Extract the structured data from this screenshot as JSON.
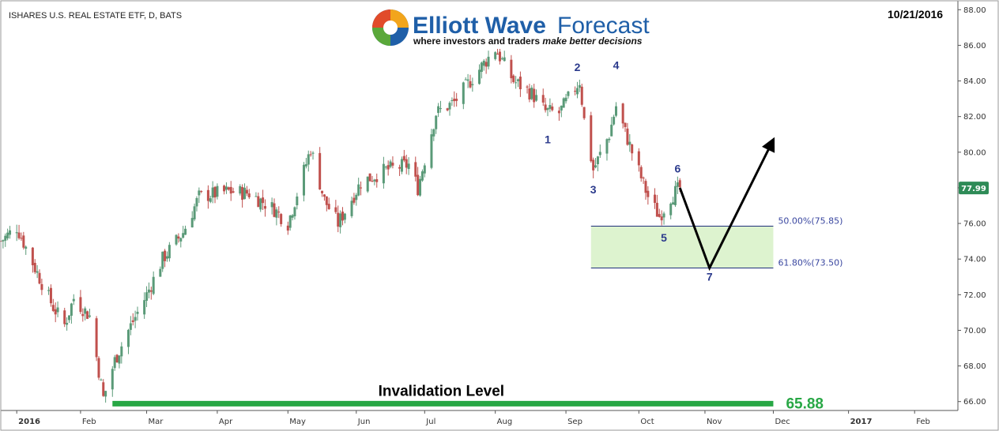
{
  "chart_title": "ISHARES U.S. REAL ESTATE ETF, D, BATS",
  "date_label": "10/21/2016",
  "logo": {
    "name_bold": "Elliott Wave",
    "name_regular": "Forecast",
    "tagline_regular": "where investors and traders ",
    "tagline_italic": "make better decisions"
  },
  "current_price": {
    "label": "77.99",
    "value": 77.99,
    "color": "#2e8b57"
  },
  "colors": {
    "up": "#5a9a78",
    "down": "#c0504d",
    "zone": "#ddf3cf",
    "fib_line": "#1f2f7a",
    "wave_label": "#2b3a8c",
    "invalidation": "#28a745"
  },
  "invalidation": {
    "label": "Invalidation Level",
    "value_label": "65.88",
    "value": 65.88,
    "from": "2016-02-15",
    "to": "2016-12-01"
  },
  "fib_zone": {
    "from": "2016-09-12",
    "to": "2016-12-01",
    "top": 75.85,
    "bottom": 73.5,
    "top_label": "50.00%(75.85)",
    "bottom_label": "61.80%(73.50)"
  },
  "projection": {
    "points": [
      {
        "date": "2016-10-21",
        "price": 78.0
      },
      {
        "date": "2016-11-03",
        "price": 73.5
      },
      {
        "date": "2016-12-01",
        "price": 80.7
      }
    ],
    "arrow": true
  },
  "chart_data": {
    "type": "candlestick",
    "title": "ISHARES U.S. REAL ESTATE ETF, D, BATS",
    "xlabel": "",
    "ylabel": "",
    "ylim": [
      65.5,
      88.5
    ],
    "xlim": [
      "2015-12-28",
      "2017-02-20"
    ],
    "y_ticks": [
      "66.00",
      "68.00",
      "70.00",
      "72.00",
      "74.00",
      "76.00",
      "78.00",
      "80.00",
      "82.00",
      "84.00",
      "86.00",
      "88.00"
    ],
    "x_ticks": [
      {
        "date": "2016-01-04",
        "label": "2016"
      },
      {
        "date": "2016-02-01",
        "label": "Feb"
      },
      {
        "date": "2016-03-01",
        "label": "Mar"
      },
      {
        "date": "2016-04-01",
        "label": "Apr"
      },
      {
        "date": "2016-05-02",
        "label": "May"
      },
      {
        "date": "2016-06-01",
        "label": "Jun"
      },
      {
        "date": "2016-07-01",
        "label": "Jul"
      },
      {
        "date": "2016-08-01",
        "label": "Aug"
      },
      {
        "date": "2016-09-01",
        "label": "Sep"
      },
      {
        "date": "2016-10-03",
        "label": "Oct"
      },
      {
        "date": "2016-11-01",
        "label": "Nov"
      },
      {
        "date": "2016-12-01",
        "label": "Dec"
      },
      {
        "date": "2017-01-03",
        "label": "2017"
      },
      {
        "date": "2017-02-01",
        "label": "Feb"
      }
    ],
    "close_path": [
      {
        "date": "2015-12-28",
        "close": 75.0
      },
      {
        "date": "2016-01-04",
        "close": 75.8
      },
      {
        "date": "2016-01-12",
        "close": 73.5
      },
      {
        "date": "2016-01-20",
        "close": 71.3
      },
      {
        "date": "2016-01-25",
        "close": 70.3
      },
      {
        "date": "2016-01-29",
        "close": 71.8
      },
      {
        "date": "2016-02-05",
        "close": 70.8
      },
      {
        "date": "2016-02-11",
        "close": 66.2
      },
      {
        "date": "2016-02-16",
        "close": 68.3
      },
      {
        "date": "2016-02-22",
        "close": 70.0
      },
      {
        "date": "2016-03-01",
        "close": 72.0
      },
      {
        "date": "2016-03-08",
        "close": 74.0
      },
      {
        "date": "2016-03-17",
        "close": 75.5
      },
      {
        "date": "2016-03-24",
        "close": 77.5
      },
      {
        "date": "2016-04-06",
        "close": 77.8
      },
      {
        "date": "2016-04-15",
        "close": 77.7
      },
      {
        "date": "2016-04-26",
        "close": 76.8
      },
      {
        "date": "2016-05-02",
        "close": 76.0
      },
      {
        "date": "2016-05-12",
        "close": 80.2
      },
      {
        "date": "2016-05-18",
        "close": 77.3
      },
      {
        "date": "2016-05-24",
        "close": 76.0
      },
      {
        "date": "2016-06-03",
        "close": 78.3
      },
      {
        "date": "2016-06-14",
        "close": 79.0
      },
      {
        "date": "2016-06-24",
        "close": 79.3
      },
      {
        "date": "2016-06-28",
        "close": 78.0
      },
      {
        "date": "2016-07-06",
        "close": 82.2
      },
      {
        "date": "2016-07-14",
        "close": 82.8
      },
      {
        "date": "2016-07-21",
        "close": 84.0
      },
      {
        "date": "2016-08-01",
        "close": 85.8
      },
      {
        "date": "2016-08-09",
        "close": 84.0
      },
      {
        "date": "2016-08-17",
        "close": 83.3
      },
      {
        "date": "2016-08-23",
        "close": 82.3
      },
      {
        "date": "2016-08-29",
        "close": 82.2
      },
      {
        "date": "2016-09-07",
        "close": 84.0
      },
      {
        "date": "2016-09-09",
        "close": 81.8
      },
      {
        "date": "2016-09-13",
        "close": 79.0
      },
      {
        "date": "2016-09-20",
        "close": 81.0
      },
      {
        "date": "2016-09-23",
        "close": 82.6
      },
      {
        "date": "2016-09-30",
        "close": 80.0
      },
      {
        "date": "2016-10-07",
        "close": 77.5
      },
      {
        "date": "2016-10-12",
        "close": 76.4
      },
      {
        "date": "2016-10-17",
        "close": 77.5
      },
      {
        "date": "2016-10-21",
        "close": 78.0
      }
    ],
    "wave_labels": [
      {
        "label": "1",
        "date": "2016-08-24",
        "price": 81.2,
        "position": "below"
      },
      {
        "label": "2",
        "date": "2016-09-06",
        "price": 84.3,
        "position": "above"
      },
      {
        "label": "3",
        "date": "2016-09-13",
        "price": 78.4,
        "position": "below"
      },
      {
        "label": "4",
        "date": "2016-09-23",
        "price": 84.4,
        "position": "above"
      },
      {
        "label": "5",
        "date": "2016-10-14",
        "price": 75.7,
        "position": "below"
      },
      {
        "label": "6",
        "date": "2016-10-20",
        "price": 78.6,
        "position": "above"
      },
      {
        "label": "7",
        "date": "2016-11-03",
        "price": 73.5,
        "position": "below"
      }
    ]
  }
}
